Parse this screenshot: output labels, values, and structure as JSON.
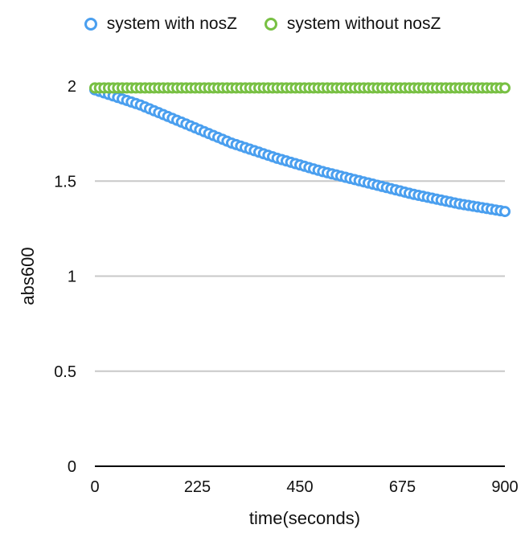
{
  "chart_data": {
    "type": "scatter",
    "title": "",
    "xlabel": "time(seconds)",
    "ylabel": "abs600",
    "xlim": [
      0,
      900
    ],
    "ylim": [
      0,
      2
    ],
    "xticks": [
      0,
      225,
      450,
      675,
      900
    ],
    "yticks": [
      0,
      0.5,
      1,
      1.5,
      2
    ],
    "xtick_labels": [
      "0",
      "225",
      "450",
      "675",
      "900"
    ],
    "ytick_labels": [
      "0",
      "0.5",
      "1",
      "1.5",
      "2"
    ],
    "grid": "horizontal",
    "legend_position": "top-center",
    "series": [
      {
        "name": "system with nosZ",
        "color": "#4a9fef",
        "marker": "open-circle",
        "x_start": 0,
        "x_end": 900,
        "x_step": 10,
        "points": [
          [
            0,
            1.98
          ],
          [
            100,
            1.9
          ],
          [
            200,
            1.8
          ],
          [
            300,
            1.7
          ],
          [
            400,
            1.62
          ],
          [
            500,
            1.55
          ],
          [
            600,
            1.49
          ],
          [
            700,
            1.43
          ],
          [
            800,
            1.38
          ],
          [
            900,
            1.34
          ]
        ]
      },
      {
        "name": "system without nosZ",
        "color": "#78c043",
        "marker": "open-circle",
        "x_start": 0,
        "x_end": 900,
        "x_step": 10,
        "points": [
          [
            0,
            1.99
          ],
          [
            900,
            1.99
          ]
        ]
      }
    ]
  }
}
